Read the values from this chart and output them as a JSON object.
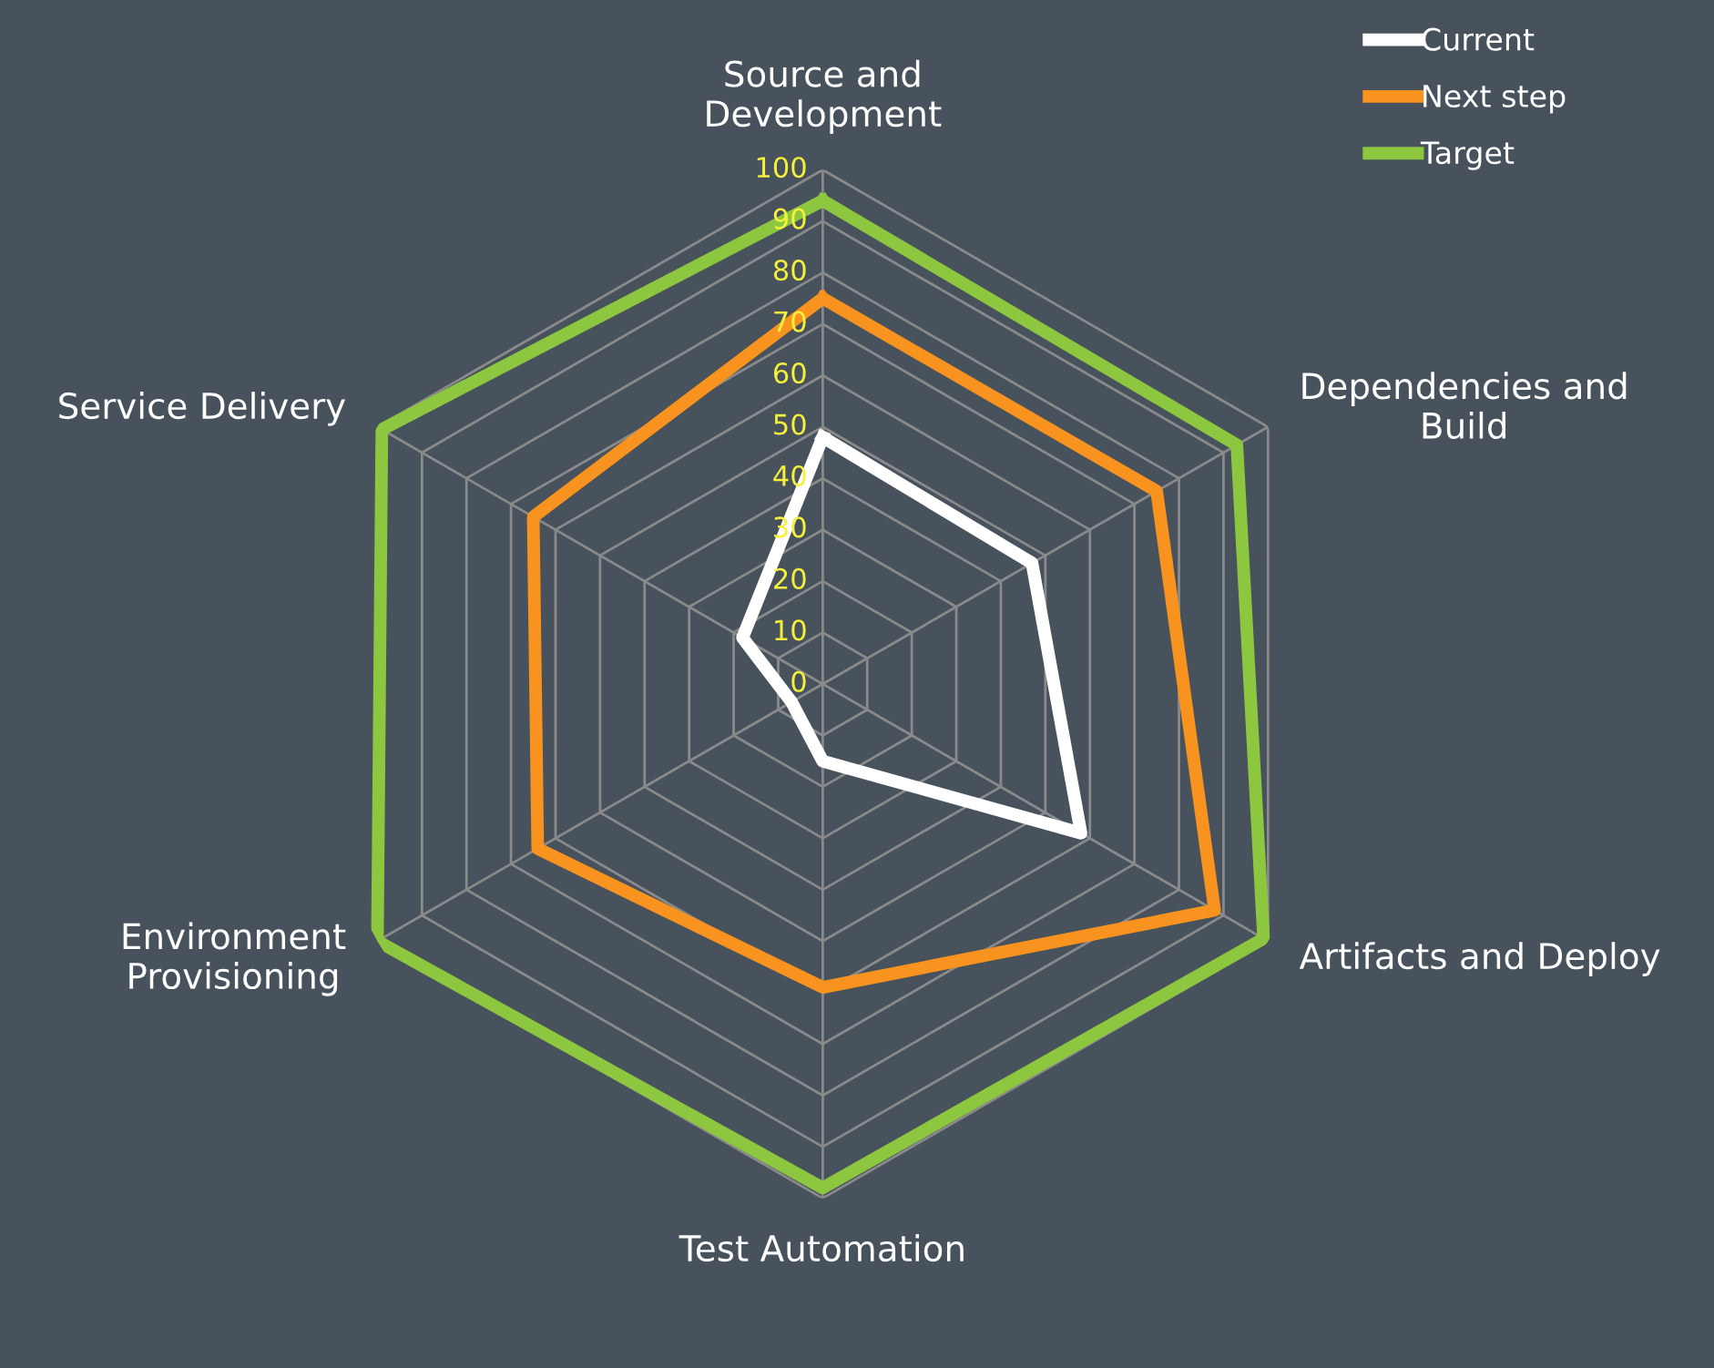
{
  "chart_data": {
    "type": "radar",
    "categories": [
      "Source and\nDevelopment",
      "Dependencies and\nBuild",
      "Artifacts and Deploy",
      "Test Automation",
      "Environment\nProvisioning",
      "Service Delivery"
    ],
    "series": [
      {
        "name": "Current",
        "color": "#ffffff",
        "values": [
          48,
          47,
          58,
          15,
          7,
          18
        ]
      },
      {
        "name": "Next step",
        "color": "#f7931e",
        "values": [
          75,
          75,
          88,
          59,
          64,
          65
        ]
      },
      {
        "name": "Target",
        "color": "#8dc63f",
        "values": [
          94,
          93,
          99,
          98,
          100,
          99
        ]
      }
    ],
    "ylim": [
      0,
      100
    ],
    "yticks": [
      0,
      10,
      20,
      30,
      40,
      50,
      60,
      70,
      80,
      90,
      100
    ],
    "grid": true,
    "legend": "top right",
    "marker": "none",
    "line_style": "solid"
  }
}
